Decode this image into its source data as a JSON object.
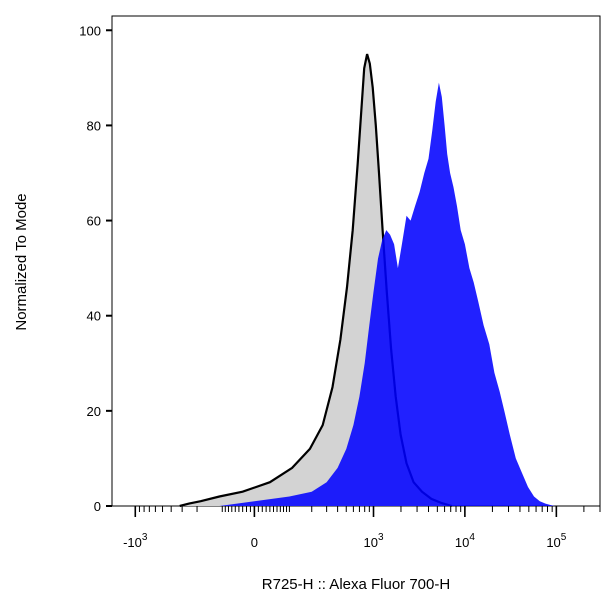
{
  "chart_data": {
    "type": "area",
    "xlabel": "R725-H :: Alexa Fluor 700-H",
    "ylabel": "Normalized To Mode",
    "x_scale": "biexponential",
    "xlim": [
      -1800,
      300000
    ],
    "ylim": [
      0,
      103
    ],
    "grid": false,
    "legend": "none",
    "x_ticks": [
      {
        "value": -1000,
        "base": "-10",
        "exp": "3"
      },
      {
        "value": 0,
        "base": "0",
        "exp": ""
      },
      {
        "value": 1000,
        "base": "10",
        "exp": "3"
      },
      {
        "value": 10000,
        "base": "10",
        "exp": "4"
      },
      {
        "value": 100000,
        "base": "10",
        "exp": "5"
      }
    ],
    "y_ticks": [
      {
        "value": 0,
        "label": "0"
      },
      {
        "value": 20,
        "label": "20"
      },
      {
        "value": 40,
        "label": "40"
      },
      {
        "value": 60,
        "label": "60"
      },
      {
        "value": 80,
        "label": "80"
      },
      {
        "value": 100,
        "label": "100"
      }
    ],
    "series": [
      {
        "fill": "#d3d3d3",
        "stroke": "#000000",
        "x": [
          -320,
          -250,
          -180,
          -100,
          -30,
          40,
          110,
          190,
          270,
          350,
          430,
          510,
          590,
          670,
          740,
          790,
          850,
          910,
          980,
          1060,
          1150,
          1260,
          1400,
          1560,
          1750,
          1980,
          2300,
          2750,
          3400,
          4300,
          5600,
          7200
        ],
        "y": [
          0,
          0.5,
          1,
          2,
          3,
          5,
          8,
          12,
          17,
          25,
          35,
          46,
          58,
          72,
          84,
          92,
          95,
          93,
          88,
          80,
          70,
          58,
          45,
          33,
          23,
          15,
          9,
          5,
          3,
          1.5,
          0.6,
          0
        ]
      },
      {
        "fill": "#0000ff",
        "fill_opacity": 0.87,
        "x": [
          -100,
          0,
          100,
          200,
          300,
          400,
          500,
          600,
          700,
          800,
          900,
          1000,
          1120,
          1250,
          1380,
          1520,
          1680,
          1850,
          2050,
          2300,
          2550,
          2850,
          3200,
          3600,
          4000,
          4400,
          4800,
          5200,
          5600,
          6000,
          6400,
          6900,
          7500,
          8200,
          9000,
          10000,
          11200,
          12500,
          14000,
          16000,
          18500,
          21000,
          24000,
          27000,
          31000,
          36000,
          42000,
          49000,
          57000,
          66000,
          76000,
          86000,
          96000
        ],
        "y": [
          0,
          1,
          2,
          3,
          5,
          8,
          12,
          17,
          23,
          30,
          38,
          45,
          52,
          56,
          58,
          57,
          55,
          50,
          55,
          61,
          60,
          63,
          66,
          70,
          73,
          79,
          85,
          89,
          86,
          80,
          74,
          70,
          67,
          63,
          58,
          55,
          50,
          47,
          43,
          38,
          34,
          28,
          24,
          20,
          15,
          10,
          7,
          4,
          2,
          1,
          0.5,
          0.2,
          0
        ]
      }
    ]
  }
}
